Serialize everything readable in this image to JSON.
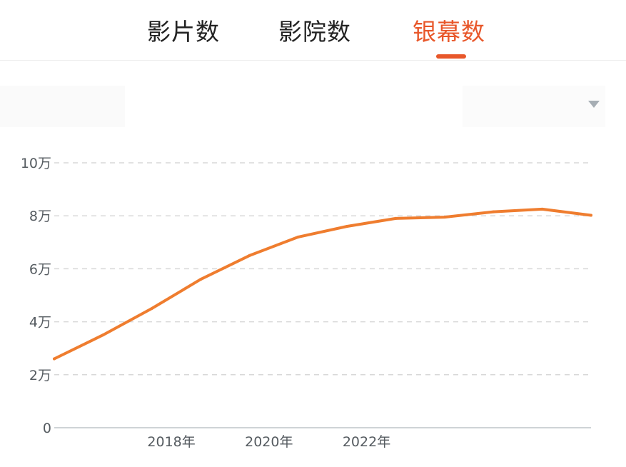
{
  "tabs": [
    {
      "label": "影片数",
      "active": false
    },
    {
      "label": "影院数",
      "active": false
    },
    {
      "label": "银幕数",
      "active": true
    }
  ],
  "colors": {
    "accent": "#e8572a",
    "line": "#ef7d2f",
    "text": "#222222",
    "grid": "#d8d8d8"
  },
  "icons": {
    "dropdown": "chevron-down-icon"
  },
  "chart_data": {
    "type": "line",
    "title": "",
    "xlabel": "",
    "ylabel": "",
    "ylim": [
      0,
      100000
    ],
    "xlim": [
      2016.0,
      2027.0
    ],
    "y_ticks": [
      {
        "value": 0,
        "label": "0"
      },
      {
        "value": 20000,
        "label": "2万"
      },
      {
        "value": 40000,
        "label": "4万"
      },
      {
        "value": 60000,
        "label": "6万"
      },
      {
        "value": 80000,
        "label": "8万"
      },
      {
        "value": 100000,
        "label": "10万"
      }
    ],
    "x_ticks": [
      {
        "value": 2018.4,
        "label": "2018年"
      },
      {
        "value": 2020.4,
        "label": "2020年"
      },
      {
        "value": 2022.4,
        "label": "2022年"
      }
    ],
    "grid": true,
    "series": [
      {
        "values": [
          {
            "x": 2016.0,
            "y": 26000
          },
          {
            "x": 2017.0,
            "y": 35000
          },
          {
            "x": 2018.0,
            "y": 45000
          },
          {
            "x": 2019.0,
            "y": 56000
          },
          {
            "x": 2020.0,
            "y": 65000
          },
          {
            "x": 2021.0,
            "y": 72000
          },
          {
            "x": 2022.0,
            "y": 76000
          },
          {
            "x": 2023.0,
            "y": 79000
          },
          {
            "x": 2024.0,
            "y": 79500
          },
          {
            "x": 2025.0,
            "y": 81500
          },
          {
            "x": 2026.0,
            "y": 82500
          },
          {
            "x": 2027.0,
            "y": 80200
          }
        ]
      }
    ]
  }
}
